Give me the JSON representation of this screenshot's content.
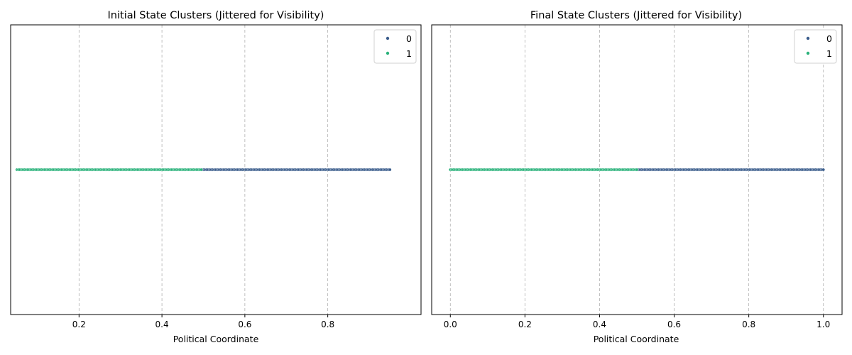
{
  "chart_data": [
    {
      "type": "scatter",
      "title": "Initial State Clusters (Jittered for Visibility)",
      "xlabel": "Political Coordinate",
      "ylabel": "",
      "xlim": [
        0.035,
        1.025
      ],
      "ylim": [
        -1,
        1
      ],
      "xticks": [
        0.2,
        0.4,
        0.6,
        0.8
      ],
      "xtick_labels": [
        "0.2",
        "0.4",
        "0.6",
        "0.8"
      ],
      "grid": "x-dashed",
      "legend_position": "top-right",
      "series": [
        {
          "name": "0",
          "color": "#3b5d8c",
          "x_start": 0.5,
          "x_end": 0.95,
          "n": 120,
          "y": 0
        },
        {
          "name": "1",
          "color": "#2bb27b",
          "x_start": 0.05,
          "x_end": 0.495,
          "n": 120,
          "y": 0
        }
      ]
    },
    {
      "type": "scatter",
      "title": "Final State Clusters (Jittered for Visibility)",
      "xlabel": "Political Coordinate",
      "ylabel": "",
      "xlim": [
        -0.05,
        1.05
      ],
      "ylim": [
        -1,
        1
      ],
      "xticks": [
        0.0,
        0.2,
        0.4,
        0.6,
        0.8,
        1.0
      ],
      "xtick_labels": [
        "0.0",
        "0.2",
        "0.4",
        "0.6",
        "0.8",
        "1.0"
      ],
      "grid": "x-dashed",
      "legend_position": "top-right",
      "series": [
        {
          "name": "0",
          "color": "#3b5d8c",
          "x_start": 0.5,
          "x_end": 1.0,
          "n": 120,
          "y": 0
        },
        {
          "name": "1",
          "color": "#2bb27b",
          "x_start": 0.0,
          "x_end": 0.5,
          "n": 120,
          "y": 0
        }
      ]
    }
  ]
}
